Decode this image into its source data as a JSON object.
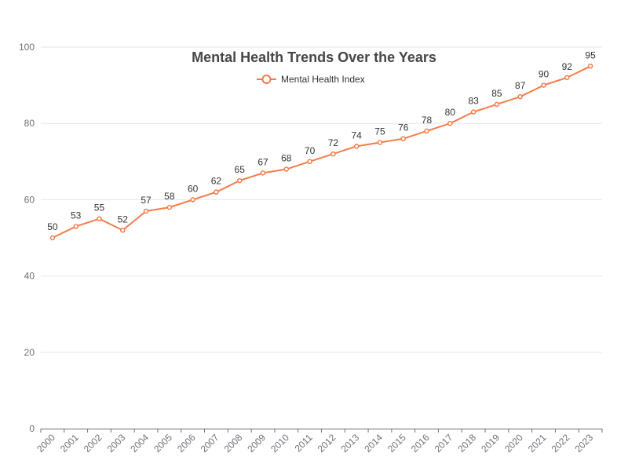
{
  "chart_data": {
    "type": "line",
    "title": "Mental Health Trends Over the Years",
    "categories": [
      "2000",
      "2001",
      "2002",
      "2003",
      "2004",
      "2005",
      "2006",
      "2007",
      "2008",
      "2009",
      "2010",
      "2011",
      "2012",
      "2013",
      "2014",
      "2015",
      "2016",
      "2017",
      "2018",
      "2019",
      "2020",
      "2021",
      "2022",
      "2023"
    ],
    "series": [
      {
        "name": "Mental Health Index",
        "values": [
          50,
          53,
          55,
          52,
          57,
          58,
          60,
          62,
          65,
          67,
          68,
          70,
          72,
          74,
          75,
          76,
          78,
          80,
          83,
          85,
          87,
          90,
          92,
          95
        ],
        "color": "#f47c4a"
      }
    ],
    "ylim": [
      0,
      100
    ],
    "yticks": [
      0,
      20,
      40,
      60,
      80,
      100
    ],
    "xlabel": "",
    "ylabel": "",
    "grid": true,
    "legend": "top-center",
    "data_labels": true,
    "x_tick_rotation": "45 degrees"
  }
}
